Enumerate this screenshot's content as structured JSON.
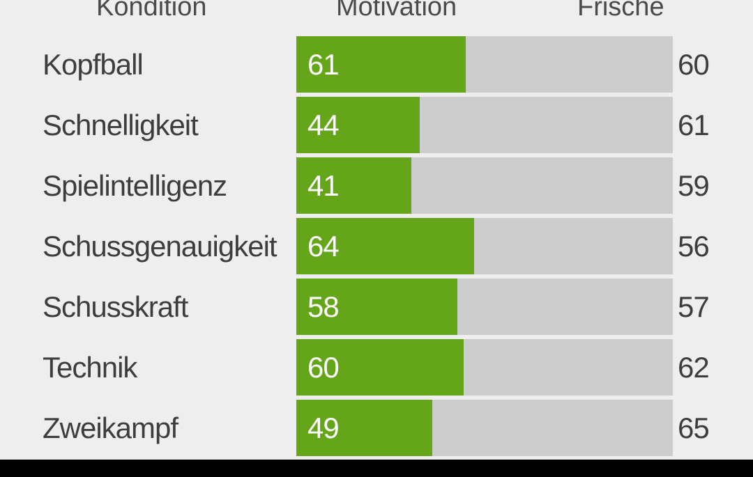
{
  "header": {
    "kondition_label": "Kondition",
    "motivation_label": "Motivation",
    "frische_label": "Frische"
  },
  "colors": {
    "bar_fill": "#64a519",
    "bar_track": "#cccccc",
    "background": "#eeeeee",
    "text": "#3d3d3d",
    "nav_bar": "#000000"
  },
  "skills": [
    {
      "label": "Kopfball",
      "value": "61",
      "fill_fraction": 0.45,
      "side_value": "60"
    },
    {
      "label": "Schnelligkeit",
      "value": "44",
      "fill_fraction": 0.328,
      "side_value": "61"
    },
    {
      "label": "Spielintelligenz",
      "value": "41",
      "fill_fraction": 0.306,
      "side_value": "59"
    },
    {
      "label": "Schussgenauigkeit",
      "value": "64",
      "fill_fraction": 0.472,
      "side_value": "56"
    },
    {
      "label": "Schusskraft",
      "value": "58",
      "fill_fraction": 0.428,
      "side_value": "57"
    },
    {
      "label": "Technik",
      "value": "60",
      "fill_fraction": 0.444,
      "side_value": "62"
    },
    {
      "label": "Zweikampf",
      "value": "49",
      "fill_fraction": 0.361,
      "side_value": "65"
    }
  ]
}
